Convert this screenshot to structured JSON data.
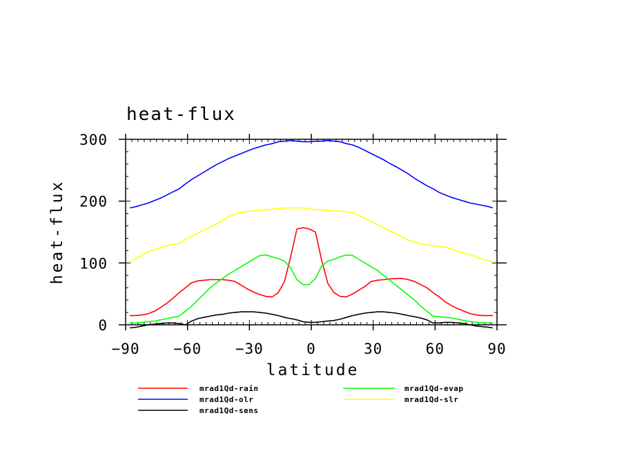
{
  "chart_data": {
    "type": "line",
    "title": "heat-flux",
    "xlabel": "latitude",
    "ylabel": "heat-flux",
    "xlim": [
      -90,
      90
    ],
    "ylim": [
      0,
      300
    ],
    "x_ticks": [
      "−90",
      "−60",
      "−30",
      "0",
      "30",
      "60",
      "90"
    ],
    "y_ticks": [
      "0",
      "100",
      "200",
      "300"
    ],
    "x": [
      -88,
      -85,
      -82,
      -79,
      -76,
      -73,
      -70,
      -67,
      -64,
      -61,
      -58,
      -55,
      -52,
      -49,
      -46,
      -43,
      -40,
      -37,
      -34,
      -31,
      -28,
      -25,
      -22,
      -19,
      -16,
      -13,
      -10,
      -7,
      -4,
      -1,
      2,
      5,
      8,
      11,
      14,
      17,
      20,
      23,
      26,
      29,
      32,
      35,
      38,
      41,
      44,
      47,
      50,
      53,
      56,
      59,
      62,
      65,
      68,
      71,
      74,
      77,
      80,
      83,
      86,
      88
    ],
    "series": [
      {
        "name": "mrad1Qd-rain",
        "color": "#ff0000",
        "values": [
          15,
          15,
          16,
          18,
          22,
          28,
          35,
          43,
          52,
          60,
          68,
          71,
          72,
          73,
          73,
          73,
          72,
          70,
          64,
          58,
          53,
          49,
          46,
          45,
          52,
          70,
          110,
          155,
          157,
          155,
          150,
          105,
          67,
          52,
          46,
          45,
          50,
          56,
          62,
          70,
          72,
          73,
          74,
          75,
          75,
          73,
          70,
          65,
          60,
          52,
          45,
          37,
          31,
          26,
          22,
          18,
          16,
          15,
          15,
          15
        ]
      },
      {
        "name": "mrad1Qd-evap",
        "color": "#00ff00",
        "values": [
          3,
          3,
          4,
          5,
          6,
          8,
          10,
          12,
          14,
          22,
          30,
          40,
          50,
          60,
          68,
          75,
          82,
          88,
          94,
          100,
          106,
          112,
          113,
          110,
          107,
          103,
          92,
          73,
          65,
          65,
          75,
          95,
          103,
          106,
          110,
          113,
          112,
          106,
          100,
          94,
          88,
          80,
          72,
          64,
          56,
          48,
          40,
          30,
          22,
          14,
          13,
          12,
          11,
          9,
          7,
          5,
          4,
          3,
          3,
          3
        ]
      },
      {
        "name": "mrad1Qd-olr",
        "color": "#0000ff",
        "values": [
          189,
          191,
          194,
          197,
          201,
          205,
          210,
          215,
          220,
          228,
          235,
          241,
          247,
          253,
          259,
          264,
          269,
          273,
          277,
          281,
          285,
          288,
          291,
          293,
          296,
          297,
          298,
          297,
          296,
          296,
          297,
          297,
          298,
          297,
          296,
          293,
          291,
          287,
          282,
          277,
          272,
          267,
          261,
          256,
          250,
          244,
          237,
          231,
          225,
          220,
          214,
          210,
          206,
          203,
          200,
          197,
          195,
          193,
          191,
          189
        ]
      },
      {
        "name": "mrad1Qd-slr",
        "color": "#ffff00",
        "values": [
          102,
          107,
          113,
          118,
          122,
          125,
          128,
          130,
          131,
          138,
          143,
          148,
          153,
          158,
          163,
          169,
          175,
          179,
          182,
          183,
          184,
          185,
          186,
          187,
          188,
          189,
          189,
          189,
          189,
          188,
          186,
          186,
          185,
          184,
          184,
          183,
          181,
          177,
          172,
          167,
          162,
          157,
          152,
          147,
          142,
          137,
          134,
          131,
          129,
          128,
          127,
          125,
          123,
          119,
          116,
          113,
          110,
          106,
          103,
          101
        ]
      },
      {
        "name": "mrad1Qd-sens",
        "color": "#000000",
        "values": [
          -5,
          -4,
          -2,
          0,
          1,
          2,
          3,
          3,
          2,
          0,
          6,
          10,
          12,
          14,
          16,
          17,
          19,
          20,
          21,
          21,
          21,
          20,
          19,
          17,
          15,
          12,
          10,
          8,
          5,
          4,
          4,
          5,
          6,
          7,
          9,
          12,
          15,
          17,
          19,
          20,
          21,
          21,
          20,
          19,
          17,
          15,
          13,
          11,
          8,
          3,
          3,
          4,
          4,
          3,
          2,
          0,
          -2,
          -3,
          -4,
          -5
        ]
      }
    ],
    "grid": false,
    "legend": {
      "placement": "bottom",
      "columns": 2
    }
  }
}
